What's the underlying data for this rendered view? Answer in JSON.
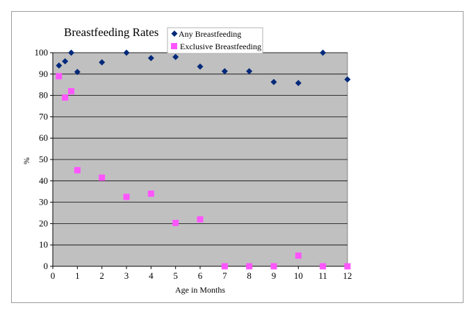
{
  "chart_data": {
    "type": "scatter",
    "title": "Breastfeeding Rates",
    "xlabel": "Age in Months",
    "ylabel": "%",
    "xlim": [
      0,
      12
    ],
    "ylim": [
      0,
      100
    ],
    "x_ticks": [
      0,
      1,
      2,
      3,
      4,
      5,
      6,
      7,
      8,
      9,
      10,
      11,
      12
    ],
    "y_ticks": [
      0,
      10,
      20,
      30,
      40,
      50,
      60,
      70,
      80,
      90,
      100
    ],
    "grid": "horizontal",
    "plot_background": "#c0c0c0",
    "legend_position": "top-right",
    "series": [
      {
        "name": "Any Breastfeeding",
        "marker": "diamond",
        "color": "#00297a",
        "points": [
          [
            0.25,
            94
          ],
          [
            0.5,
            96
          ],
          [
            0.75,
            100
          ],
          [
            1,
            91
          ],
          [
            2,
            95.5
          ],
          [
            3,
            100
          ],
          [
            4,
            97.5
          ],
          [
            5,
            98
          ],
          [
            6,
            93.5
          ],
          [
            7,
            91.3
          ],
          [
            8,
            91.3
          ],
          [
            9,
            86.3
          ],
          [
            10,
            85.8
          ],
          [
            11,
            100
          ],
          [
            12,
            87.5
          ]
        ]
      },
      {
        "name": "Exclusive Breastfeeding",
        "marker": "square",
        "color": "#ff55ff",
        "points": [
          [
            0.25,
            89
          ],
          [
            0.5,
            79
          ],
          [
            0.75,
            82
          ],
          [
            1,
            45
          ],
          [
            2,
            41.5
          ],
          [
            3,
            32.5
          ],
          [
            4,
            34
          ],
          [
            5,
            20.3
          ],
          [
            6,
            22
          ],
          [
            7,
            0
          ],
          [
            8,
            0
          ],
          [
            9,
            0
          ],
          [
            10,
            5
          ],
          [
            11,
            0
          ],
          [
            12,
            0
          ]
        ]
      }
    ]
  }
}
